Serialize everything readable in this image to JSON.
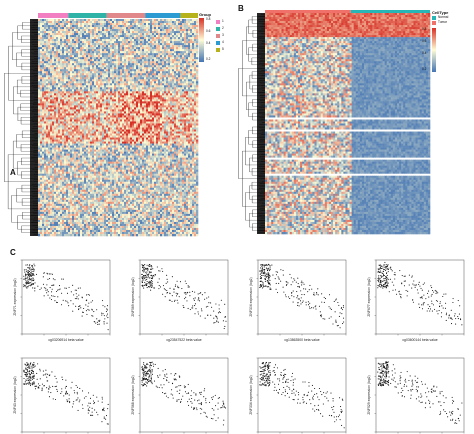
{
  "panels": {
    "A": {
      "label": "A"
    },
    "B": {
      "label": "B"
    },
    "C": {
      "label": "C"
    }
  },
  "heatmapA": {
    "legend_title": "Group",
    "ticks": [
      "0.8",
      "0.6",
      "0.4",
      "0.2"
    ],
    "groups": [
      "1",
      "2",
      "3",
      "4",
      "5"
    ],
    "group_colors": [
      "#f27fc1",
      "#2fb3a6",
      "#e0888a",
      "#2c9bd1",
      "#b5b21c"
    ],
    "group_widths": [
      0.19,
      0.24,
      0.24,
      0.22,
      0.11
    ]
  },
  "heatmapB": {
    "legend_title": "CellType",
    "celltypes": [
      "Normal",
      "Tumor"
    ],
    "celltype_colors": [
      "#27b6b6",
      "#f0716a"
    ],
    "ticks": [
      "0.8",
      "0.6",
      "0.4",
      "0.2"
    ]
  },
  "scatter_plots": [
    {
      "ylabel": "ZNF71 expression (log2)",
      "xlabel": "cg03206914 beta value"
    },
    {
      "ylabel": "ZNF569 expression (log2)",
      "xlabel": "cg23547522 beta value"
    },
    {
      "ylabel": "ZNF304 expression (log2)",
      "xlabel": "cg13863500 beta value"
    },
    {
      "ylabel": "ZNF677 expression (log2)",
      "xlabel": "cg03600144 beta value"
    },
    {
      "ylabel": "ZNF43 expression (log2)",
      "xlabel": "cg11893225 beta value"
    },
    {
      "ylabel": "ZNF568 expression (log2)",
      "xlabel": "cg27543217 beta value"
    },
    {
      "ylabel": "ZNF334 expression (log2)",
      "xlabel": "cg04377171 beta value"
    },
    {
      "ylabel": "ZNF529 expression (log2)",
      "xlabel": "cg05365307 beta value"
    }
  ],
  "colors": {
    "high": "#d73027",
    "mid": "#fefcd4",
    "low": "#4575b4",
    "point": "#111111"
  }
}
